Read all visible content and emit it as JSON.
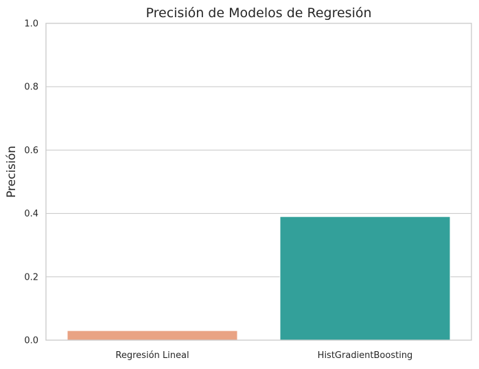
{
  "chart_data": {
    "type": "bar",
    "title": "Precisión de Modelos de Regresión",
    "xlabel": "",
    "ylabel": "Precisión",
    "categories": [
      "Regresión Lineal",
      "HistGradientBoosting"
    ],
    "values": [
      0.03,
      0.39
    ],
    "ylim": [
      0,
      1.0
    ],
    "yticks": [
      0.0,
      0.2,
      0.4,
      0.6,
      0.8,
      1.0
    ],
    "ytick_labels": [
      "0.0",
      "0.2",
      "0.4",
      "0.6",
      "0.8",
      "1.0"
    ],
    "grid": "horizontal",
    "colors": [
      "#e9a384",
      "#33a09a"
    ],
    "grid_color": "#cccccc",
    "spine_color": "#cccccc"
  }
}
